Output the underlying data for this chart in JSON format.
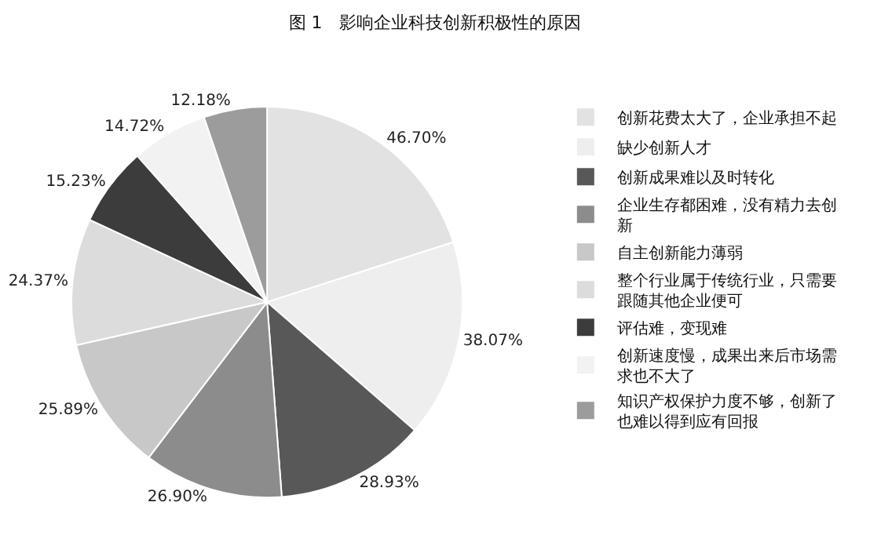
{
  "chart_data": {
    "type": "pie",
    "title": "图 1　影响企业科技创新积极性的原因",
    "categories": [
      "创新花费太大了，企业承担不起",
      "缺少创新人才",
      "创新成果难以及时转化",
      "企业生存都困难，没有精力去创新",
      "自主创新能力薄弱",
      "整个行业属于传统行业，只需要跟随其他企业便可",
      "评估难，变现难",
      "创新速度慢，成果出来后市场需求也不大了",
      "知识产权保护力度不够，创新了也难以得到应有回报"
    ],
    "values": [
      46.7,
      38.07,
      28.93,
      26.9,
      25.89,
      24.37,
      15.23,
      14.72,
      12.18
    ],
    "value_labels": [
      "46.70%",
      "38.07%",
      "28.93%",
      "26.90%",
      "25.89%",
      "24.37%",
      "15.23%",
      "14.72%",
      "12.18%"
    ],
    "colors": [
      "#e2e2e2",
      "#eeeeee",
      "#585858",
      "#8c8c8c",
      "#c8c8c8",
      "#dcdcdc",
      "#3c3c3c",
      "#f2f2f2",
      "#9c9c9c"
    ],
    "legend": "right"
  }
}
